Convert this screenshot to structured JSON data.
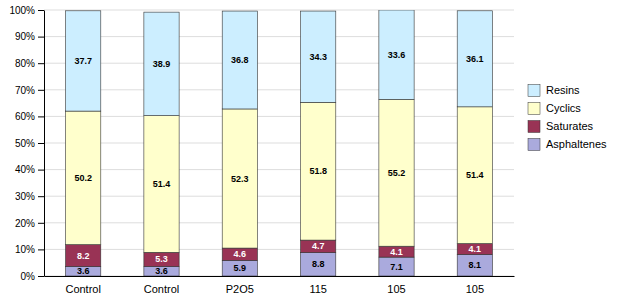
{
  "chart_data": {
    "type": "bar",
    "stacked": true,
    "data_labels": true,
    "grid": true,
    "legend": "right",
    "categories": [
      "Control",
      "Control",
      "P2O5",
      "115",
      "105",
      "105"
    ],
    "series": [
      {
        "name": "Asphaltenes",
        "color": "#AAAADD",
        "values": [
          3.6,
          3.6,
          5.9,
          8.8,
          7.1,
          8.1
        ]
      },
      {
        "name": "Saturates",
        "color": "#993355",
        "values": [
          8.2,
          5.3,
          4.6,
          4.7,
          4.1,
          4.1
        ]
      },
      {
        "name": "Cyclics",
        "color": "#FFFFCC",
        "values": [
          50.2,
          51.4,
          52.3,
          51.8,
          55.2,
          51.4
        ]
      },
      {
        "name": "Resins",
        "color": "#CCEEFF",
        "values": [
          37.7,
          38.9,
          36.8,
          34.3,
          33.6,
          36.1
        ]
      }
    ],
    "ylim": [
      0,
      100
    ],
    "yticks": [
      {
        "value": 0,
        "label": "0%"
      },
      {
        "value": 10,
        "label": "10%"
      },
      {
        "value": 20,
        "label": "20%"
      },
      {
        "value": 30,
        "label": "30%"
      },
      {
        "value": 40,
        "label": "40%"
      },
      {
        "value": 50,
        "label": "50%"
      },
      {
        "value": 60,
        "label": "60%"
      },
      {
        "value": 70,
        "label": "70%"
      },
      {
        "value": 80,
        "label": "80%"
      },
      {
        "value": 90,
        "label": "90%"
      },
      {
        "value": 100,
        "label": "100%"
      }
    ]
  }
}
